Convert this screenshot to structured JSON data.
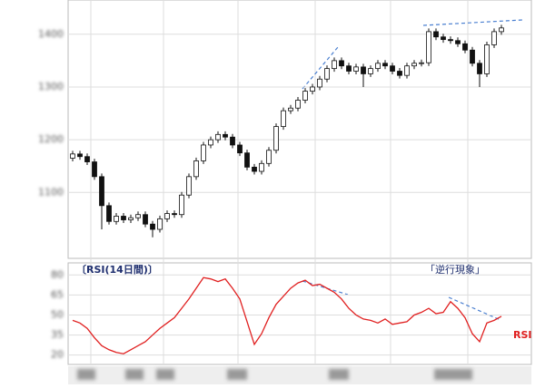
{
  "chart_data": [
    {
      "type": "candlestick",
      "open": [
        1165,
        1173,
        1168,
        1158,
        1130,
        1075,
        1045,
        1055,
        1048,
        1052,
        1058,
        1040,
        1030,
        1050,
        1060,
        1058,
        1095,
        1130,
        1160,
        1190,
        1200,
        1210,
        1205,
        1190,
        1175,
        1148,
        1140,
        1155,
        1180,
        1225,
        1255,
        1260,
        1275,
        1292,
        1300,
        1315,
        1335,
        1350,
        1340,
        1330,
        1338,
        1325,
        1335,
        1345,
        1340,
        1330,
        1322,
        1340,
        1345,
        1346,
        1405,
        1395,
        1390,
        1388,
        1382,
        1370,
        1345,
        1325,
        1380,
        1405
      ],
      "close": [
        1173,
        1168,
        1158,
        1130,
        1075,
        1045,
        1055,
        1048,
        1052,
        1058,
        1040,
        1030,
        1050,
        1060,
        1058,
        1095,
        1130,
        1160,
        1190,
        1200,
        1210,
        1205,
        1190,
        1175,
        1148,
        1140,
        1155,
        1180,
        1225,
        1255,
        1260,
        1275,
        1292,
        1300,
        1315,
        1335,
        1350,
        1340,
        1330,
        1338,
        1325,
        1335,
        1345,
        1340,
        1330,
        1322,
        1340,
        1345,
        1346,
        1405,
        1395,
        1390,
        1388,
        1382,
        1370,
        1345,
        1325,
        1380,
        1405,
        1412
      ],
      "high": [
        1179,
        1179,
        1174,
        1164,
        1136,
        1081,
        1061,
        1061,
        1058,
        1064,
        1064,
        1046,
        1056,
        1066,
        1066,
        1101,
        1136,
        1166,
        1196,
        1206,
        1216,
        1216,
        1211,
        1196,
        1181,
        1154,
        1161,
        1186,
        1231,
        1261,
        1266,
        1281,
        1298,
        1306,
        1321,
        1341,
        1356,
        1356,
        1346,
        1344,
        1344,
        1341,
        1351,
        1351,
        1346,
        1336,
        1346,
        1351,
        1352,
        1411,
        1411,
        1401,
        1396,
        1394,
        1388,
        1376,
        1351,
        1386,
        1411,
        1418
      ],
      "low": [
        1159,
        1162,
        1152,
        1124,
        1030,
        1039,
        1039,
        1042,
        1042,
        1046,
        1034,
        1015,
        1024,
        1044,
        1052,
        1052,
        1089,
        1124,
        1154,
        1184,
        1194,
        1199,
        1184,
        1169,
        1142,
        1134,
        1134,
        1149,
        1174,
        1219,
        1249,
        1254,
        1269,
        1286,
        1294,
        1309,
        1329,
        1334,
        1324,
        1324,
        1300,
        1319,
        1329,
        1334,
        1324,
        1316,
        1316,
        1334,
        1339,
        1340,
        1389,
        1384,
        1382,
        1376,
        1364,
        1339,
        1300,
        1319,
        1374,
        1399
      ],
      "up_color": "#ffffff",
      "down_color": "#111111",
      "ylim": [
        975,
        1465
      ],
      "yticks": [
        1100,
        1200,
        1300,
        1400
      ]
    },
    {
      "type": "line",
      "title": "〔RSI(14日間)〕",
      "annotation": "「逆行現象」",
      "series": [
        {
          "name": "RSI",
          "color": "#e02020",
          "values": [
            46,
            44,
            40,
            33,
            27,
            24,
            22,
            21,
            24,
            27,
            30,
            35,
            40,
            44,
            48,
            55,
            62,
            70,
            78,
            77,
            75,
            77,
            70,
            62,
            45,
            28,
            36,
            48,
            58,
            64,
            70,
            74,
            76,
            72,
            73,
            70,
            67,
            62,
            55,
            50,
            47,
            46,
            44,
            47,
            43,
            44,
            45,
            50,
            52,
            55,
            51,
            52,
            60,
            55,
            48,
            36,
            30,
            44,
            46,
            49
          ]
        }
      ],
      "ylim": [
        13,
        89
      ],
      "yticks": [
        20,
        35,
        50,
        65,
        80
      ]
    }
  ]
}
